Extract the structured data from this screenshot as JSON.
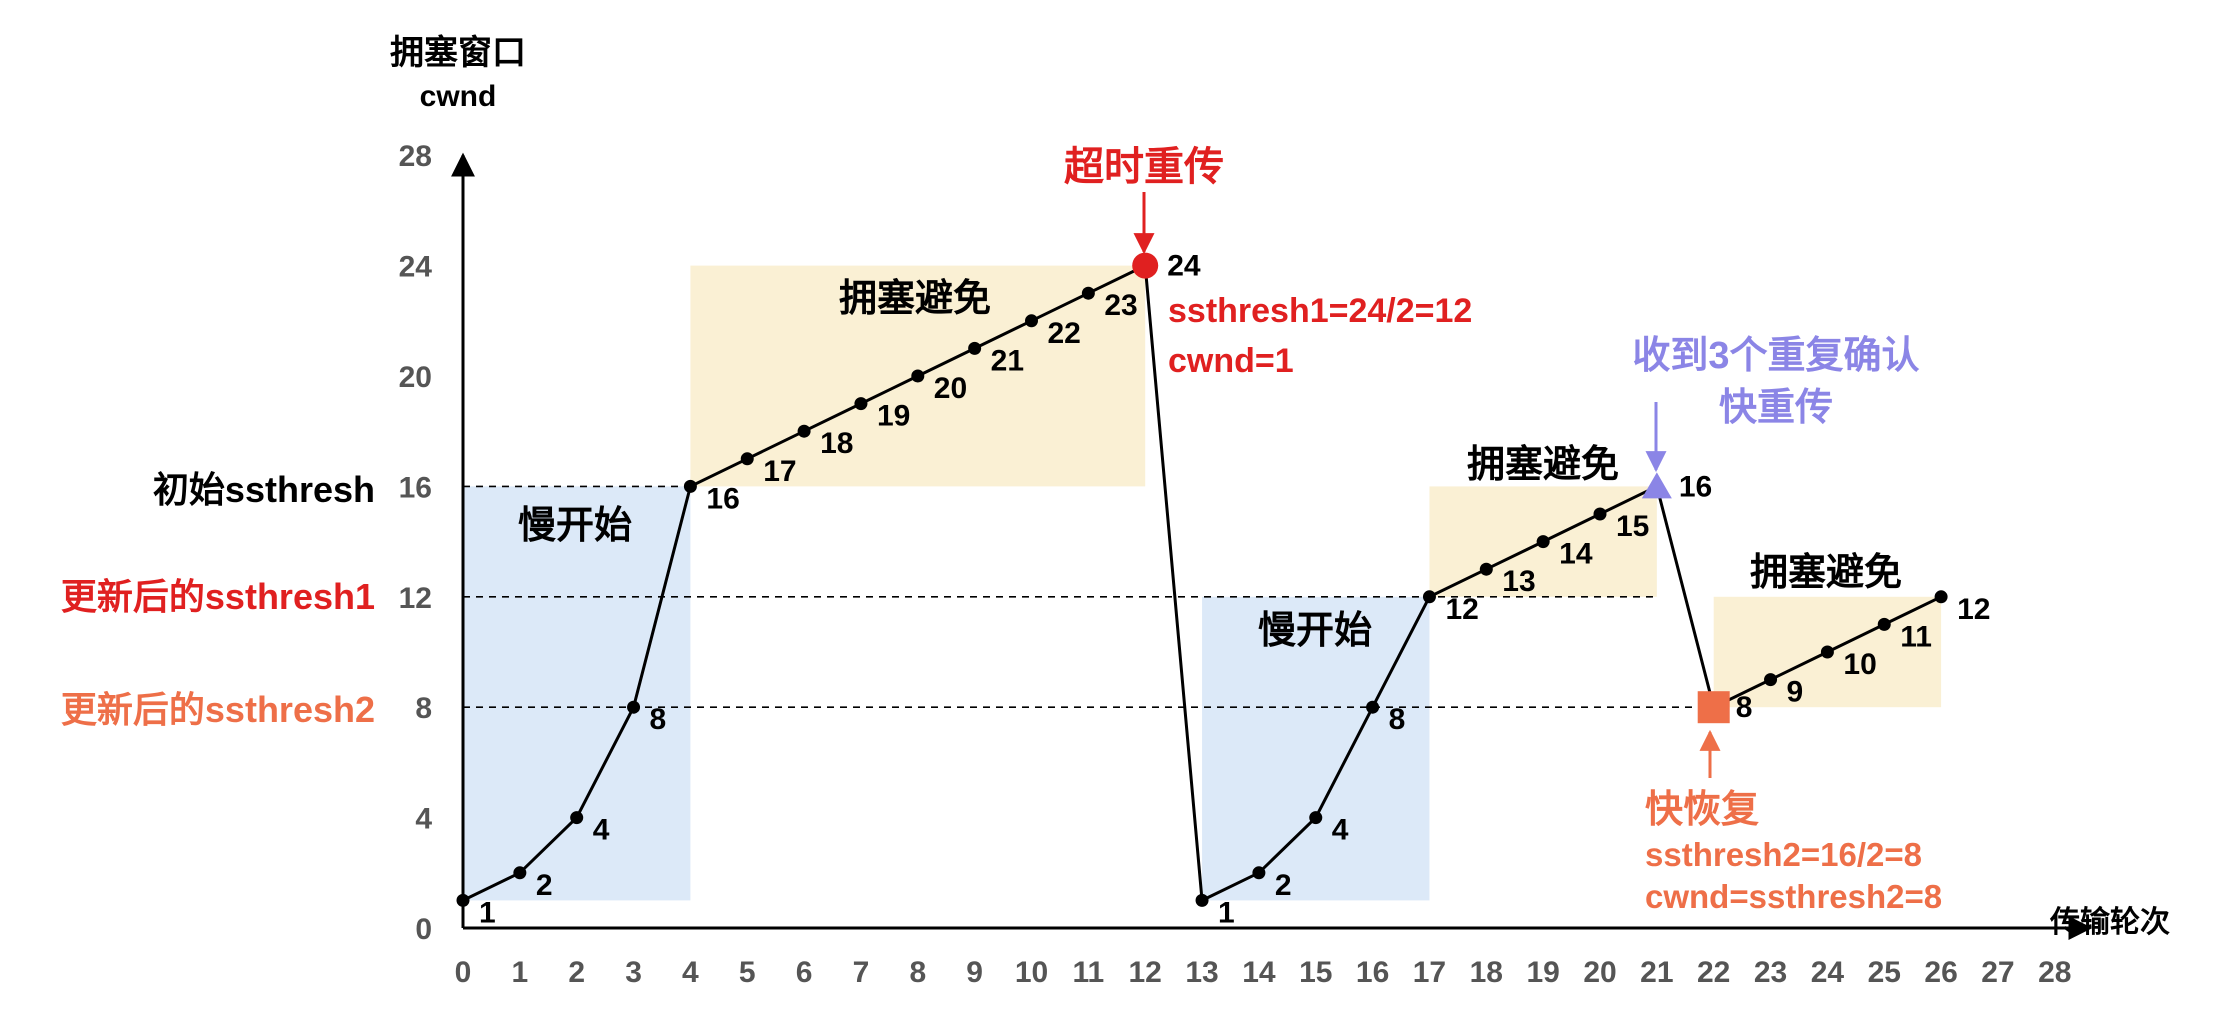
{
  "colors": {
    "axis": "#000000",
    "grid_text": "#555555",
    "slow_start_bg": "#dce9f8",
    "avoidance_bg": "#faf0d4",
    "red": "#e02020",
    "orange": "#ee6f48",
    "purple": "#8b85e6"
  },
  "axis": {
    "y_title_line1": "拥塞窗口",
    "y_title_line2": "cwnd",
    "x_title": "传输轮次"
  },
  "threshold_labels": {
    "initial": "初始ssthresh",
    "updated1": "更新后的ssthresh1",
    "updated2": "更新后的ssthresh2"
  },
  "region_labels": {
    "slow_start": "慢开始",
    "avoidance": "拥塞避免"
  },
  "annotations": {
    "timeout_title": "超时重传",
    "timeout_line1": "ssthresh1=24/2=12",
    "timeout_line2": "cwnd=1",
    "dupack_line1": "收到3个重复确认",
    "dupack_line2": "快重传",
    "fast_recovery_title": "快恢复",
    "fast_recovery_line1": "ssthresh2=16/2=8",
    "fast_recovery_line2": "cwnd=ssthresh2=8"
  },
  "chart_data": {
    "type": "line",
    "xlabel": "传输轮次",
    "ylabel": "拥塞窗口 cwnd",
    "xlim": [
      0,
      28
    ],
    "ylim": [
      0,
      28
    ],
    "x_ticks": [
      0,
      1,
      2,
      3,
      4,
      5,
      6,
      7,
      8,
      9,
      10,
      11,
      12,
      13,
      14,
      15,
      16,
      17,
      18,
      19,
      20,
      21,
      22,
      23,
      24,
      25,
      26,
      27,
      28
    ],
    "y_ticks": [
      0,
      4,
      8,
      12,
      16,
      20,
      24,
      28
    ],
    "ssthresh_lines": [
      16,
      12,
      8
    ],
    "x": [
      0,
      1,
      2,
      3,
      4,
      5,
      6,
      7,
      8,
      9,
      10,
      11,
      12,
      13,
      14,
      15,
      16,
      17,
      18,
      19,
      20,
      21,
      22,
      23,
      24,
      25,
      26
    ],
    "y": [
      1,
      2,
      4,
      8,
      16,
      17,
      18,
      19,
      20,
      21,
      22,
      23,
      24,
      1,
      2,
      4,
      8,
      12,
      13,
      14,
      15,
      16,
      8,
      9,
      10,
      11,
      12
    ],
    "point_labels": [
      "1",
      "2",
      "4",
      "8",
      "16",
      "17",
      "18",
      "19",
      "20",
      "21",
      "22",
      "23",
      "24",
      "1",
      "2",
      "4",
      "8",
      "12",
      "13",
      "14",
      "15",
      "16",
      "8",
      "9",
      "10",
      "11",
      "12"
    ],
    "regions": [
      {
        "kind": "slow_start",
        "x": [
          0,
          4
        ],
        "y": [
          1,
          16
        ]
      },
      {
        "kind": "avoidance",
        "x": [
          4,
          12
        ],
        "y": [
          16,
          24
        ]
      },
      {
        "kind": "slow_start",
        "x": [
          13,
          17
        ],
        "y": [
          1,
          12
        ]
      },
      {
        "kind": "avoidance",
        "x": [
          17,
          21
        ],
        "y": [
          12,
          16
        ]
      },
      {
        "kind": "avoidance",
        "x": [
          22,
          26
        ],
        "y": [
          8,
          12
        ]
      }
    ],
    "events": [
      {
        "type": "timeout",
        "x": 12,
        "y": 24
      },
      {
        "type": "triple_dup_ack",
        "x": 21,
        "y": 16
      },
      {
        "type": "fast_recovery",
        "x": 22,
        "y": 8
      }
    ]
  }
}
